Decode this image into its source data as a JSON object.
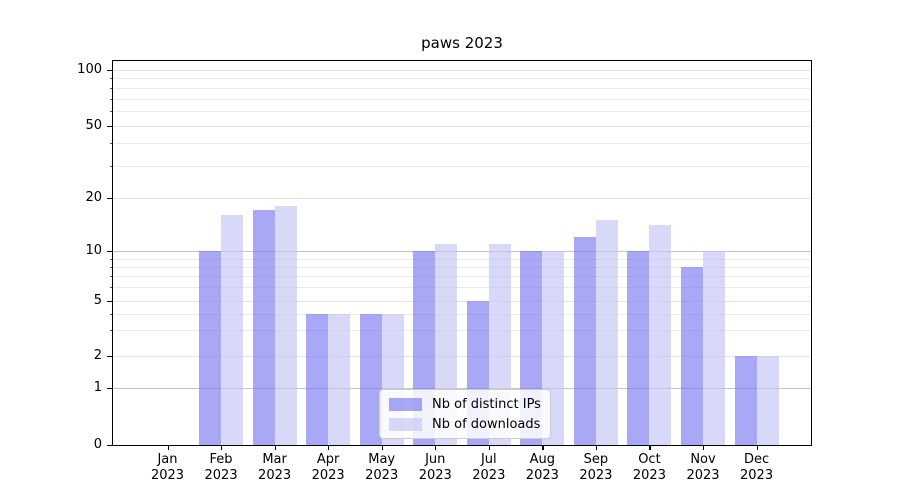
{
  "title": "paws 2023",
  "y_axis": {
    "tick_labels": [
      "0",
      "1",
      "2",
      "5",
      "10",
      "20",
      "50",
      "100"
    ]
  },
  "x_axis": {
    "months": [
      "Jan",
      "Feb",
      "Mar",
      "Apr",
      "May",
      "Jun",
      "Jul",
      "Aug",
      "Sep",
      "Oct",
      "Nov",
      "Dec"
    ],
    "year": "2023"
  },
  "legend": {
    "items": [
      "Nb of distinct IPs",
      "Nb of downloads"
    ]
  },
  "colors": {
    "ips_bar": "rgba(121,121,243,0.65)",
    "downloads_bar": "rgba(195,195,246,0.65)",
    "grid_major": "#c3c3c3",
    "grid_labeled": "#e4e4e4",
    "grid_minor": "#ebebeb",
    "axis": "#000000"
  },
  "chart_data": {
    "type": "bar",
    "title": "paws 2023",
    "categories": [
      "Jan 2023",
      "Feb 2023",
      "Mar 2023",
      "Apr 2023",
      "May 2023",
      "Jun 2023",
      "Jul 2023",
      "Aug 2023",
      "Sep 2023",
      "Oct 2023",
      "Nov 2023",
      "Dec 2023"
    ],
    "series": [
      {
        "name": "Nb of distinct IPs",
        "values": [
          0,
          10,
          17,
          4,
          4,
          10,
          5,
          10,
          12,
          10,
          8,
          2
        ]
      },
      {
        "name": "Nb of downloads",
        "values": [
          0,
          16,
          18,
          4,
          4,
          11,
          11,
          10,
          15,
          14,
          10,
          2
        ]
      }
    ],
    "yscale": "symlog",
    "yticks": [
      0,
      1,
      2,
      5,
      10,
      20,
      50,
      100
    ],
    "minor_yticks": [
      3,
      4,
      6,
      7,
      8,
      9,
      30,
      40,
      60,
      70,
      80,
      90
    ],
    "ylim": [
      0,
      111
    ],
    "xlabel": "",
    "ylabel": "",
    "grid": true,
    "legend_position": "lower center"
  }
}
